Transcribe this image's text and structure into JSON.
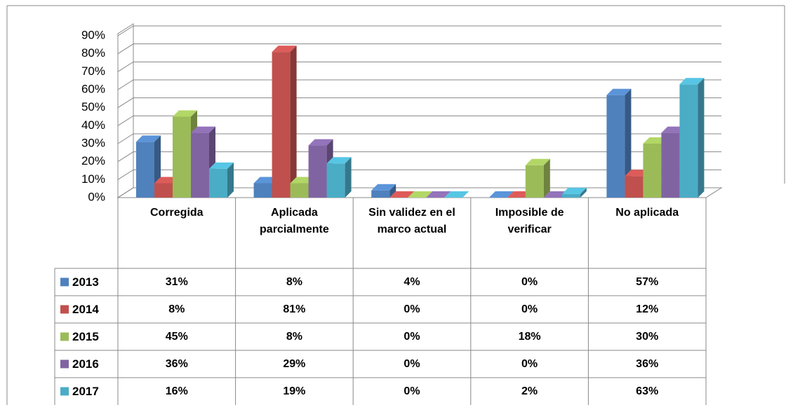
{
  "chart_data": {
    "type": "bar3d",
    "categories": [
      "Corregida",
      "Aplicada parcialmente",
      "Sin validez en el marco actual",
      "Imposible de verificar",
      "No aplicada"
    ],
    "series": [
      {
        "name": "2013",
        "color": "#4f81bd",
        "values": [
          31,
          8,
          4,
          0,
          57
        ],
        "value_labels": [
          "31%",
          "8%",
          "4%",
          "0%",
          "57%"
        ]
      },
      {
        "name": "2014",
        "color": "#c0504d",
        "values": [
          8,
          81,
          0,
          0,
          12
        ],
        "value_labels": [
          "8%",
          "81%",
          "0%",
          "0%",
          "12%"
        ]
      },
      {
        "name": "2015",
        "color": "#9bbb59",
        "values": [
          45,
          8,
          0,
          18,
          30
        ],
        "value_labels": [
          "45%",
          "8%",
          "0%",
          "18%",
          "30%"
        ]
      },
      {
        "name": "2016",
        "color": "#8064a2",
        "values": [
          36,
          29,
          0,
          0,
          36
        ],
        "value_labels": [
          "36%",
          "29%",
          "0%",
          "0%",
          "36%"
        ]
      },
      {
        "name": "2017",
        "color": "#4bacc6",
        "values": [
          16,
          19,
          0,
          2,
          63
        ],
        "value_labels": [
          "16%",
          "19%",
          "0%",
          "2%",
          "63%"
        ]
      }
    ],
    "ylim": [
      0,
      90
    ],
    "yticks": [
      {
        "value": 0,
        "label": "0%"
      },
      {
        "value": 10,
        "label": "10%"
      },
      {
        "value": 20,
        "label": "20%"
      },
      {
        "value": 30,
        "label": "30%"
      },
      {
        "value": 40,
        "label": "40%"
      },
      {
        "value": 50,
        "label": "50%"
      },
      {
        "value": 60,
        "label": "60%"
      },
      {
        "value": 70,
        "label": "70%"
      },
      {
        "value": 80,
        "label": "80%"
      },
      {
        "value": 90,
        "label": "90%"
      }
    ],
    "grid": true,
    "data_table": true
  }
}
